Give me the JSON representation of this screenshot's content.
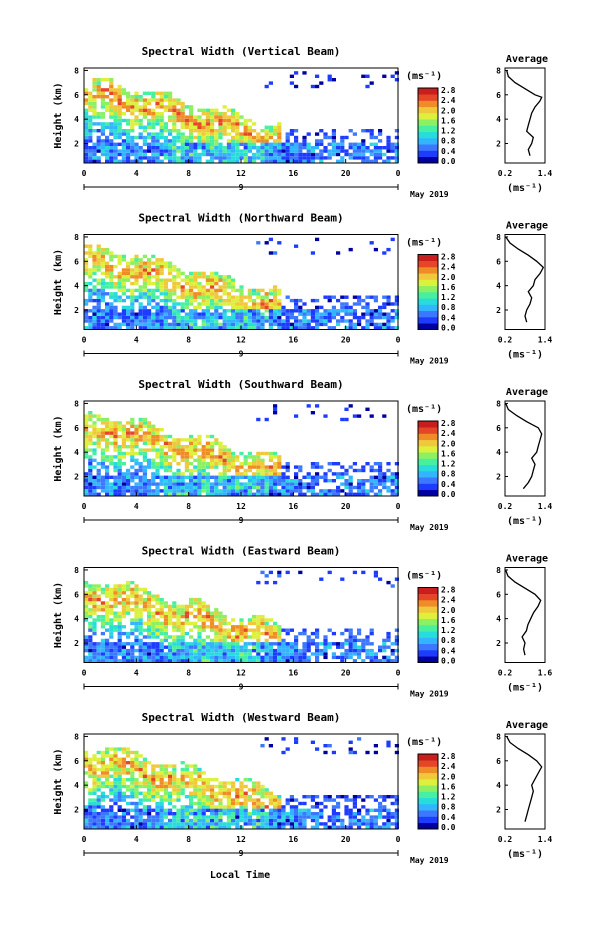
{
  "figure": {
    "date_label": "May 2019",
    "x_axis_title": "Local Time",
    "avg_title": "Average",
    "cbar_unit": "(ms⁻¹)",
    "avg_xlabel": "(ms⁻¹)",
    "colormap": [
      "#0000a0",
      "#1e3cff",
      "#3c78ff",
      "#32b4ff",
      "#28dcdc",
      "#46f0a0",
      "#8cf064",
      "#dcf03c",
      "#f0c83c",
      "#f08c28",
      "#e64628",
      "#c81e1e"
    ]
  },
  "chart_data": [
    {
      "type": "heatmap",
      "title": "Spectral Width (Vertical Beam)",
      "ylabel": "Height (km)",
      "xlabel": "Local Time",
      "x_ticks": [
        "0",
        "4",
        "8",
        "12",
        "16",
        "20",
        "0"
      ],
      "x_range_hours": [
        0,
        24
      ],
      "day_label": "9",
      "date_label": "May 2019",
      "y_ticks": [
        "2",
        "4",
        "6",
        "8"
      ],
      "y_range_km": [
        0.4,
        8.2
      ],
      "colorbar": {
        "unit": "(ms⁻¹)",
        "ticks": [
          "2.8",
          "2.4",
          "2.0",
          "1.6",
          "1.2",
          "0.8",
          "0.4",
          "0.0"
        ],
        "range": [
          0.0,
          2.8
        ]
      },
      "average_profile": {
        "title": "Average",
        "xlabel": "(ms⁻¹)",
        "x_ticks": [
          "0.2",
          "1.4"
        ],
        "x_range": [
          0.2,
          1.4
        ],
        "y_range_km": [
          0.4,
          8.2
        ],
        "y_ticks": [
          "2",
          "4",
          "6",
          "8"
        ],
        "points": [
          [
            0.95,
            1.0
          ],
          [
            0.9,
            1.5
          ],
          [
            1.0,
            2.0
          ],
          [
            1.05,
            2.5
          ],
          [
            0.85,
            3.0
          ],
          [
            0.9,
            3.5
          ],
          [
            0.95,
            4.0
          ],
          [
            1.0,
            4.5
          ],
          [
            1.1,
            5.0
          ],
          [
            1.25,
            5.5
          ],
          [
            1.3,
            5.8
          ],
          [
            1.1,
            6.0
          ],
          [
            0.8,
            6.5
          ],
          [
            0.5,
            7.0
          ],
          [
            0.3,
            7.5
          ],
          [
            0.25,
            8.0
          ]
        ]
      }
    },
    {
      "type": "heatmap",
      "title": "Spectral Width (Northward Beam)",
      "ylabel": "Height (km)",
      "x_ticks": [
        "0",
        "4",
        "8",
        "12",
        "16",
        "20",
        "0"
      ],
      "x_range_hours": [
        0,
        24
      ],
      "day_label": "9",
      "date_label": "May 2019",
      "y_ticks": [
        "2",
        "4",
        "6",
        "8"
      ],
      "y_range_km": [
        0.4,
        8.2
      ],
      "colorbar": {
        "unit": "(ms⁻¹)",
        "ticks": [
          "2.8",
          "2.4",
          "2.0",
          "1.6",
          "1.2",
          "0.8",
          "0.4",
          "0.0"
        ],
        "range": [
          0.0,
          2.8
        ]
      },
      "average_profile": {
        "title": "Average",
        "xlabel": "(ms⁻¹)",
        "x_ticks": [
          "0.2",
          "1.4"
        ],
        "x_range": [
          0.2,
          1.4
        ],
        "y_range_km": [
          0.4,
          8.2
        ],
        "y_ticks": [
          "2",
          "4",
          "6",
          "8"
        ],
        "points": [
          [
            0.85,
            1.0
          ],
          [
            0.8,
            1.5
          ],
          [
            0.85,
            2.0
          ],
          [
            0.95,
            2.5
          ],
          [
            1.0,
            3.0
          ],
          [
            0.9,
            3.5
          ],
          [
            1.05,
            4.0
          ],
          [
            1.1,
            4.5
          ],
          [
            1.25,
            5.0
          ],
          [
            1.35,
            5.5
          ],
          [
            1.15,
            6.0
          ],
          [
            0.9,
            6.5
          ],
          [
            0.6,
            7.0
          ],
          [
            0.35,
            7.5
          ],
          [
            0.22,
            8.0
          ]
        ]
      }
    },
    {
      "type": "heatmap",
      "title": "Spectral Width (Southward Beam)",
      "ylabel": "Height (km)",
      "x_ticks": [
        "0",
        "4",
        "8",
        "12",
        "16",
        "20",
        "0"
      ],
      "x_range_hours": [
        0,
        24
      ],
      "day_label": "9",
      "date_label": "May 2019",
      "y_ticks": [
        "2",
        "4",
        "6",
        "8"
      ],
      "y_range_km": [
        0.4,
        8.2
      ],
      "colorbar": {
        "unit": "(ms⁻¹)",
        "ticks": [
          "2.8",
          "2.4",
          "2.0",
          "1.6",
          "1.2",
          "0.8",
          "0.4",
          "0.0"
        ],
        "range": [
          0.0,
          2.8
        ]
      },
      "average_profile": {
        "title": "Average",
        "xlabel": "(ms⁻¹)",
        "x_ticks": [
          "0.2",
          "1.4"
        ],
        "x_range": [
          0.2,
          1.4
        ],
        "y_range_km": [
          0.4,
          8.2
        ],
        "y_ticks": [
          "2",
          "4",
          "6",
          "8"
        ],
        "points": [
          [
            0.75,
            1.0
          ],
          [
            0.9,
            1.5
          ],
          [
            1.0,
            2.0
          ],
          [
            1.05,
            2.5
          ],
          [
            1.1,
            3.0
          ],
          [
            1.0,
            3.5
          ],
          [
            1.15,
            4.0
          ],
          [
            1.2,
            4.5
          ],
          [
            1.25,
            5.0
          ],
          [
            1.3,
            5.5
          ],
          [
            1.2,
            6.0
          ],
          [
            0.85,
            6.5
          ],
          [
            0.55,
            7.0
          ],
          [
            0.3,
            7.5
          ],
          [
            0.22,
            8.0
          ]
        ]
      }
    },
    {
      "type": "heatmap",
      "title": "Spectral Width (Eastward Beam)",
      "ylabel": "Height (km)",
      "x_ticks": [
        "0",
        "4",
        "8",
        "12",
        "16",
        "20",
        "0"
      ],
      "x_range_hours": [
        0,
        24
      ],
      "day_label": "9",
      "date_label": "May 2019",
      "y_ticks": [
        "2",
        "4",
        "6",
        "8"
      ],
      "y_range_km": [
        0.4,
        8.2
      ],
      "colorbar": {
        "unit": "(ms⁻¹)",
        "ticks": [
          "2.8",
          "2.4",
          "2.0",
          "1.6",
          "1.2",
          "0.8",
          "0.4",
          "0.0"
        ],
        "range": [
          0.0,
          2.8
        ]
      },
      "average_profile": {
        "title": "Average",
        "xlabel": "(ms⁻¹)",
        "x_ticks": [
          "0.2",
          "1.6"
        ],
        "x_range": [
          0.2,
          1.6
        ],
        "y_range_km": [
          0.4,
          8.2
        ],
        "y_ticks": [
          "2",
          "4",
          "6",
          "8"
        ],
        "points": [
          [
            0.9,
            1.0
          ],
          [
            0.85,
            1.5
          ],
          [
            0.9,
            2.0
          ],
          [
            0.8,
            2.5
          ],
          [
            0.95,
            3.0
          ],
          [
            1.0,
            3.5
          ],
          [
            1.1,
            4.0
          ],
          [
            1.2,
            4.5
          ],
          [
            1.35,
            5.0
          ],
          [
            1.45,
            5.5
          ],
          [
            1.25,
            6.0
          ],
          [
            0.9,
            6.5
          ],
          [
            0.55,
            7.0
          ],
          [
            0.3,
            7.5
          ],
          [
            0.22,
            8.0
          ]
        ]
      }
    },
    {
      "type": "heatmap",
      "title": "Spectral Width (Westward Beam)",
      "ylabel": "Height (km)",
      "x_ticks": [
        "0",
        "4",
        "8",
        "12",
        "16",
        "20",
        "0"
      ],
      "x_range_hours": [
        0,
        24
      ],
      "day_label": "9",
      "date_label": "May 2019",
      "y_ticks": [
        "2",
        "4",
        "6",
        "8"
      ],
      "y_range_km": [
        0.4,
        8.2
      ],
      "colorbar": {
        "unit": "(ms⁻¹)",
        "ticks": [
          "2.8",
          "2.4",
          "2.0",
          "1.6",
          "1.2",
          "0.8",
          "0.4",
          "0.0"
        ],
        "range": [
          0.0,
          2.8
        ]
      },
      "average_profile": {
        "title": "Average",
        "xlabel": "(ms⁻¹)",
        "x_ticks": [
          "0.2",
          "1.4"
        ],
        "x_range": [
          0.2,
          1.4
        ],
        "y_range_km": [
          0.4,
          8.2
        ],
        "y_ticks": [
          "2",
          "4",
          "6",
          "8"
        ],
        "points": [
          [
            0.8,
            1.0
          ],
          [
            0.85,
            1.5
          ],
          [
            0.9,
            2.0
          ],
          [
            0.95,
            2.5
          ],
          [
            1.0,
            3.0
          ],
          [
            1.05,
            3.5
          ],
          [
            1.0,
            4.0
          ],
          [
            1.1,
            4.5
          ],
          [
            1.2,
            5.0
          ],
          [
            1.3,
            5.5
          ],
          [
            1.15,
            6.0
          ],
          [
            0.9,
            6.5
          ],
          [
            0.6,
            7.0
          ],
          [
            0.35,
            7.5
          ],
          [
            0.25,
            8.0
          ]
        ]
      }
    }
  ]
}
